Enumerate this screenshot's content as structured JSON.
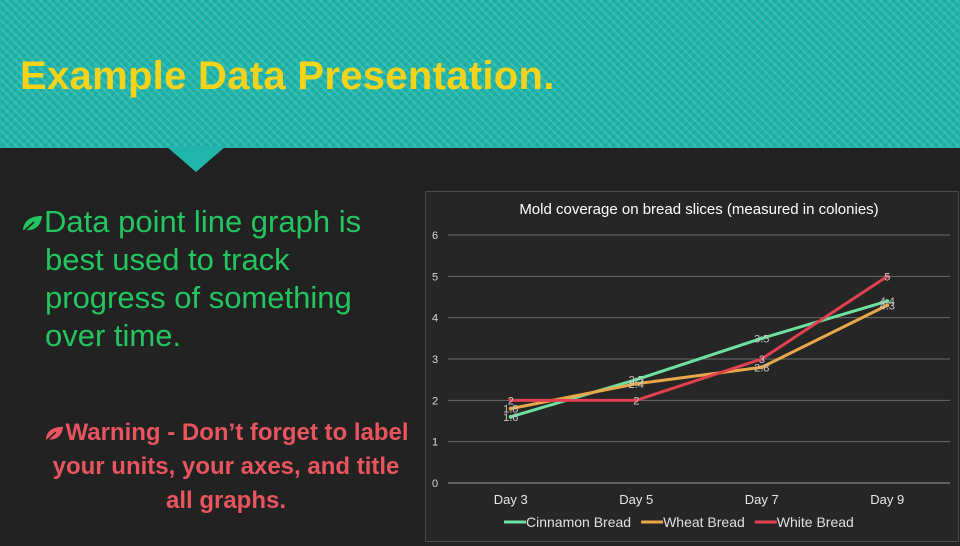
{
  "slide": {
    "title": "Example Data Presentation.",
    "bullet1": "Data point line graph is best used to track progress of something over time.",
    "bullet2": "Warning - Don’t forget to label your units, your axes, and title all graphs.",
    "colors": {
      "header": "#1fb5aa",
      "title": "#f5d31a",
      "bullet1": "#22c55e",
      "bullet2": "#e8555f",
      "background": "#222222"
    },
    "bullet_icon": "leaf-icon"
  },
  "chart_data": {
    "type": "line",
    "title": "Mold coverage on bread slices (measured in colonies)",
    "categories": [
      "Day 3",
      "Day 5",
      "Day 7",
      "Day 9"
    ],
    "series": [
      {
        "name": "Cinnamon Bread",
        "values": [
          1.6,
          2.5,
          3.5,
          4.4
        ],
        "color": "#6ee0a0"
      },
      {
        "name": "Wheat Bread",
        "values": [
          1.8,
          2.4,
          2.8,
          4.3
        ],
        "color": "#e8a84a"
      },
      {
        "name": "White Bread",
        "values": [
          2,
          2,
          3,
          5
        ],
        "color": "#e04050"
      }
    ],
    "ylim": [
      0,
      6
    ],
    "yticks": [
      0,
      1,
      2,
      3,
      4,
      5,
      6
    ],
    "grid": true,
    "legend": "bottom",
    "data_labels": true
  }
}
